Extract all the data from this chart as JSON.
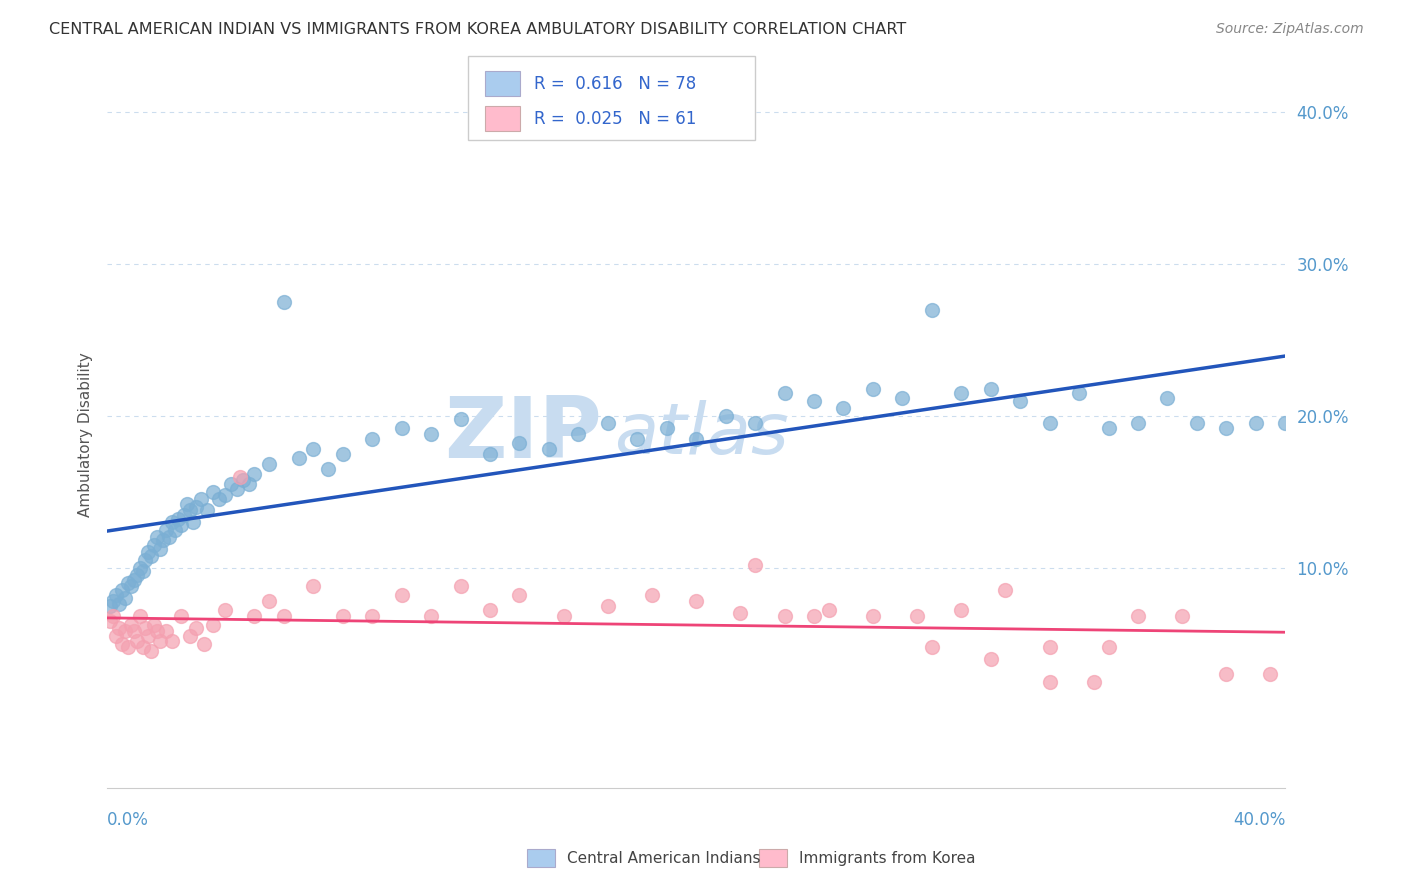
{
  "title": "CENTRAL AMERICAN INDIAN VS IMMIGRANTS FROM KOREA AMBULATORY DISABILITY CORRELATION CHART",
  "source": "Source: ZipAtlas.com",
  "ylabel": "Ambulatory Disability",
  "xlim": [
    0.0,
    0.4
  ],
  "ylim": [
    -0.045,
    0.42
  ],
  "legend_label1": "Central American Indians",
  "legend_label2": "Immigrants from Korea",
  "blue_scatter_color": "#7BAFD4",
  "pink_scatter_color": "#F4A0B0",
  "blue_line_color": "#2255BB",
  "pink_line_color": "#EE4477",
  "blue_legend_fill": "#AACCEE",
  "pink_legend_fill": "#FFBBCC",
  "background_color": "#FFFFFF",
  "grid_color": "#CCDDEE",
  "ytick_color": "#5599CC",
  "xtick_color": "#5599CC",
  "title_color": "#333333",
  "source_color": "#888888",
  "ylabel_color": "#555555",
  "watermark_zip_color": "#C8DCF0",
  "watermark_atlas_color": "#C8DCF0",
  "R1": 0.616,
  "N1": 78,
  "R2": 0.025,
  "N2": 61,
  "blue_x": [
    0.001,
    0.002,
    0.003,
    0.004,
    0.005,
    0.006,
    0.007,
    0.008,
    0.009,
    0.01,
    0.011,
    0.012,
    0.013,
    0.014,
    0.015,
    0.016,
    0.017,
    0.018,
    0.019,
    0.02,
    0.021,
    0.022,
    0.023,
    0.024,
    0.025,
    0.026,
    0.027,
    0.028,
    0.029,
    0.03,
    0.032,
    0.034,
    0.036,
    0.038,
    0.04,
    0.042,
    0.044,
    0.046,
    0.048,
    0.05,
    0.055,
    0.06,
    0.065,
    0.07,
    0.075,
    0.08,
    0.09,
    0.1,
    0.11,
    0.12,
    0.13,
    0.14,
    0.15,
    0.16,
    0.17,
    0.18,
    0.19,
    0.2,
    0.21,
    0.22,
    0.23,
    0.24,
    0.25,
    0.26,
    0.27,
    0.28,
    0.29,
    0.3,
    0.31,
    0.32,
    0.33,
    0.34,
    0.35,
    0.36,
    0.37,
    0.38,
    0.39,
    0.4
  ],
  "blue_y": [
    0.075,
    0.078,
    0.082,
    0.076,
    0.085,
    0.08,
    0.09,
    0.088,
    0.092,
    0.095,
    0.1,
    0.098,
    0.105,
    0.11,
    0.108,
    0.115,
    0.12,
    0.112,
    0.118,
    0.125,
    0.12,
    0.13,
    0.125,
    0.132,
    0.128,
    0.135,
    0.142,
    0.138,
    0.13,
    0.14,
    0.145,
    0.138,
    0.15,
    0.145,
    0.148,
    0.155,
    0.152,
    0.158,
    0.155,
    0.162,
    0.168,
    0.275,
    0.172,
    0.178,
    0.165,
    0.175,
    0.185,
    0.192,
    0.188,
    0.198,
    0.175,
    0.182,
    0.178,
    0.188,
    0.195,
    0.185,
    0.192,
    0.185,
    0.2,
    0.195,
    0.215,
    0.21,
    0.205,
    0.218,
    0.212,
    0.27,
    0.215,
    0.218,
    0.21,
    0.195,
    0.215,
    0.192,
    0.195,
    0.212,
    0.195,
    0.192,
    0.195,
    0.195
  ],
  "pink_x": [
    0.001,
    0.002,
    0.003,
    0.004,
    0.005,
    0.006,
    0.007,
    0.008,
    0.009,
    0.01,
    0.011,
    0.012,
    0.013,
    0.014,
    0.015,
    0.016,
    0.017,
    0.018,
    0.02,
    0.022,
    0.025,
    0.028,
    0.03,
    0.033,
    0.036,
    0.04,
    0.045,
    0.05,
    0.055,
    0.06,
    0.07,
    0.08,
    0.09,
    0.1,
    0.11,
    0.12,
    0.13,
    0.14,
    0.155,
    0.17,
    0.185,
    0.2,
    0.215,
    0.23,
    0.245,
    0.26,
    0.275,
    0.29,
    0.305,
    0.32,
    0.335,
    0.35,
    0.365,
    0.38,
    0.395,
    0.22,
    0.24,
    0.28,
    0.3,
    0.32,
    0.34
  ],
  "pink_y": [
    0.065,
    0.068,
    0.055,
    0.06,
    0.05,
    0.058,
    0.048,
    0.062,
    0.058,
    0.052,
    0.068,
    0.048,
    0.06,
    0.055,
    0.045,
    0.062,
    0.058,
    0.052,
    0.058,
    0.052,
    0.068,
    0.055,
    0.06,
    0.05,
    0.062,
    0.072,
    0.16,
    0.068,
    0.078,
    0.068,
    0.088,
    0.068,
    0.068,
    0.082,
    0.068,
    0.088,
    0.072,
    0.082,
    0.068,
    0.075,
    0.082,
    0.078,
    0.07,
    0.068,
    0.072,
    0.068,
    0.068,
    0.072,
    0.085,
    0.048,
    0.025,
    0.068,
    0.068,
    0.03,
    0.03,
    0.102,
    0.068,
    0.048,
    0.04,
    0.025,
    0.048
  ]
}
